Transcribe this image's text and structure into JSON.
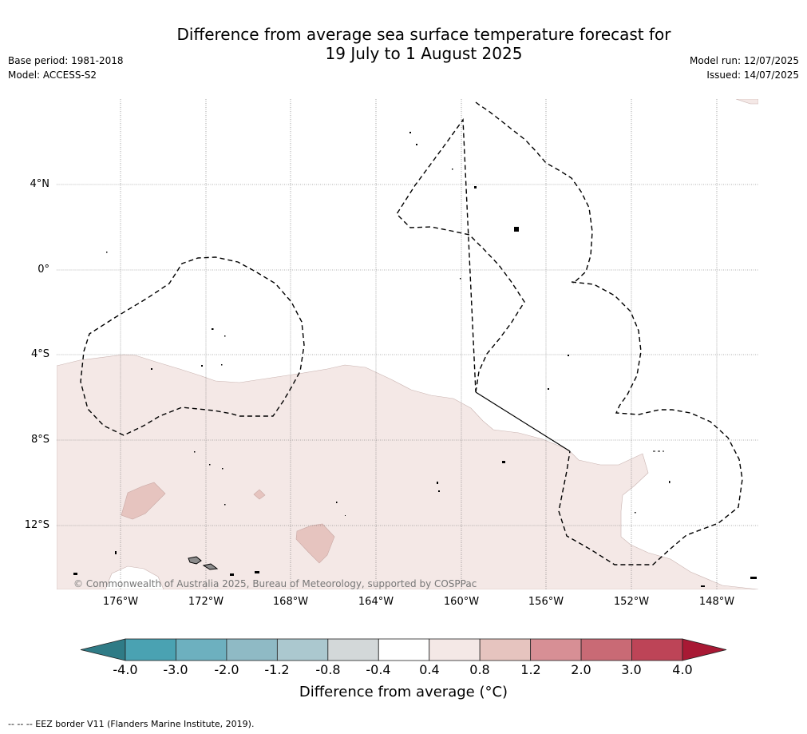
{
  "header": {
    "title_line1": "Difference from average sea surface temperature forecast for",
    "title_line2": "19 July to 1 August 2025",
    "base_period": "Base period: 1981-2018",
    "model": "Model: ACCESS-S2",
    "model_run": "Model run: 12/07/2025",
    "issued": "Issued: 14/07/2025"
  },
  "map": {
    "region": "Central/South Pacific",
    "lat_labels": [
      "4°N",
      "0°",
      "4°S",
      "8°S",
      "12°S"
    ],
    "lon_labels": [
      "176°W",
      "172°W",
      "168°W",
      "164°W",
      "160°W",
      "156°W",
      "152°W",
      "148°W"
    ],
    "copyright": "© Commonwealth of Australia 2025, Bureau of Meteorology, supported by COSPPac",
    "colors": {
      "anomaly_0_4_to_0_8": "#f4e8e6",
      "anomaly_0_8_to_1_2": "#e6c4bf",
      "land": "#8c8c8c",
      "eez": "#000000",
      "grid": "#777777"
    }
  },
  "colorbar": {
    "ticks": [
      "-4.0",
      "-3.0",
      "-2.0",
      "-1.2",
      "-0.8",
      "-0.4",
      "0.4",
      "0.8",
      "1.2",
      "2.0",
      "3.0",
      "4.0"
    ],
    "colors": [
      "#2f7b86",
      "#4aa2b2",
      "#6db0bf",
      "#8fbac5",
      "#abc8cf",
      "#d3d8d9",
      "#ffffff",
      "#f4e8e6",
      "#e6c4bf",
      "#d78f95",
      "#c96a75",
      "#bd4457",
      "#a81934"
    ],
    "label": "Difference from average (°C)"
  },
  "footnote": "--  --  -- EEZ border V11 (Flanders Marine Institute, 2019)."
}
